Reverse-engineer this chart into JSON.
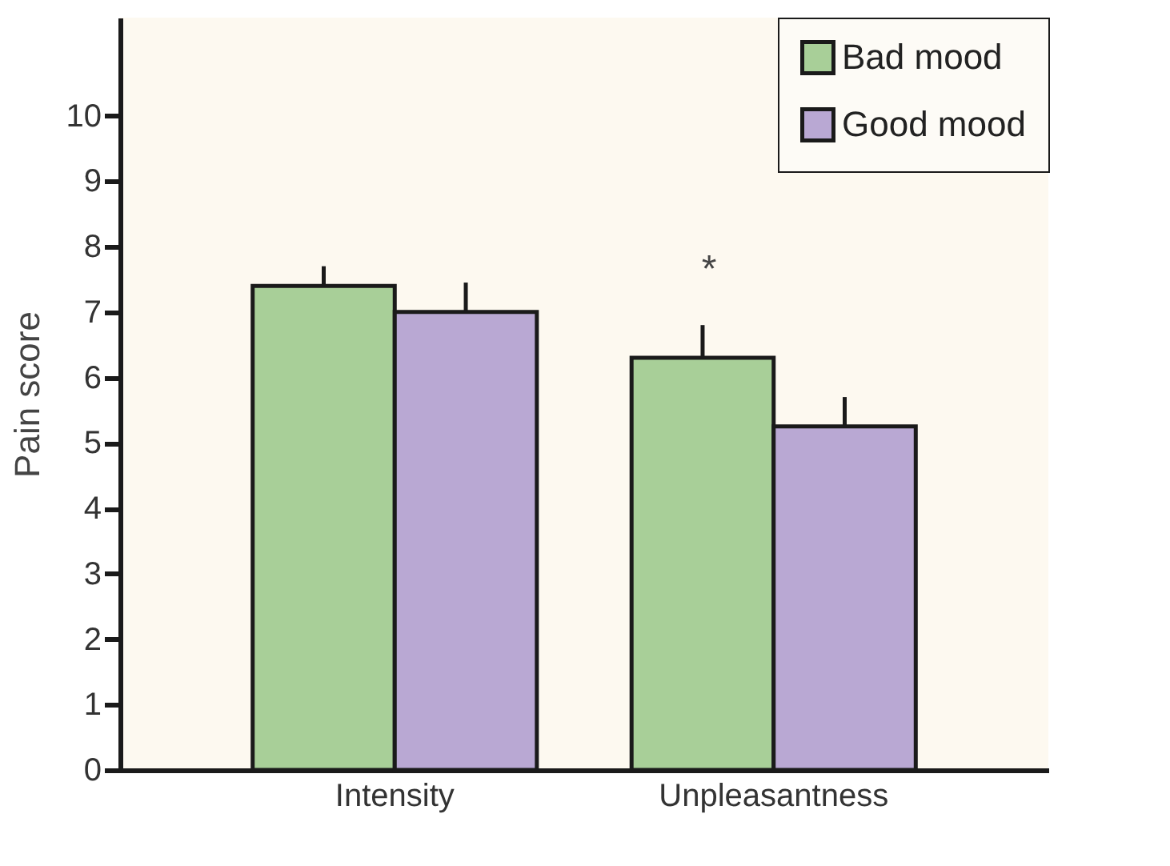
{
  "chart_data": {
    "type": "bar",
    "ylabel": "Pain score",
    "categories": [
      "Intensity",
      "Unpleasantness"
    ],
    "series": [
      {
        "name": "Bad mood",
        "color": "#a8cf98",
        "values": [
          7.4,
          6.3
        ],
        "errors": [
          0.3,
          0.5
        ]
      },
      {
        "name": "Good mood",
        "color": "#b9a8d3",
        "values": [
          7.0,
          5.25
        ],
        "errors": [
          0.45,
          0.45
        ]
      }
    ],
    "ylim": [
      0,
      11.5
    ],
    "yticks": [
      0,
      1,
      2,
      3,
      4,
      5,
      6,
      7,
      8,
      9,
      10
    ],
    "grid": false,
    "legend": "top right",
    "annotations": [
      "*"
    ]
  }
}
